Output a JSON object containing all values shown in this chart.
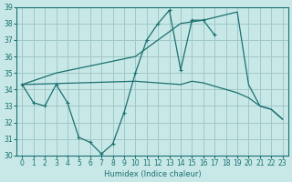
{
  "xlabel": "Humidex (Indice chaleur)",
  "bg_color": "#c8e8e8",
  "grid_color": "#a0c8c8",
  "line_color": "#1a7070",
  "xlim": [
    -0.5,
    23.5
  ],
  "ylim": [
    30,
    39
  ],
  "yticks": [
    30,
    31,
    32,
    33,
    34,
    35,
    36,
    37,
    38,
    39
  ],
  "xticks": [
    0,
    1,
    2,
    3,
    4,
    5,
    6,
    7,
    8,
    9,
    10,
    11,
    12,
    13,
    14,
    15,
    16,
    17,
    18,
    19,
    20,
    21,
    22,
    23
  ],
  "series": [
    {
      "x": [
        0,
        3,
        10,
        13,
        14,
        16,
        19,
        20,
        21,
        22,
        23
      ],
      "y": [
        34.3,
        35.0,
        36.0,
        37.5,
        38.0,
        38.2,
        38.7,
        34.3,
        33.0,
        32.8,
        32.2
      ],
      "marker": false
    },
    {
      "x": [
        0,
        1,
        2,
        3,
        4,
        5,
        6,
        7,
        8,
        9,
        10,
        11,
        12,
        13,
        14,
        15,
        16,
        17
      ],
      "y": [
        34.3,
        33.2,
        33.0,
        34.3,
        33.2,
        31.1,
        30.8,
        30.1,
        30.7,
        32.6,
        35.0,
        37.0,
        38.0,
        38.8,
        35.2,
        38.2,
        38.2,
        37.3
      ],
      "marker": true
    },
    {
      "x": [
        0,
        10,
        14,
        15,
        16,
        17,
        18,
        19,
        20,
        21,
        22,
        23
      ],
      "y": [
        34.3,
        34.5,
        34.3,
        34.5,
        34.4,
        34.2,
        34.0,
        33.8,
        33.5,
        33.0,
        32.8,
        32.2
      ],
      "marker": false
    }
  ]
}
